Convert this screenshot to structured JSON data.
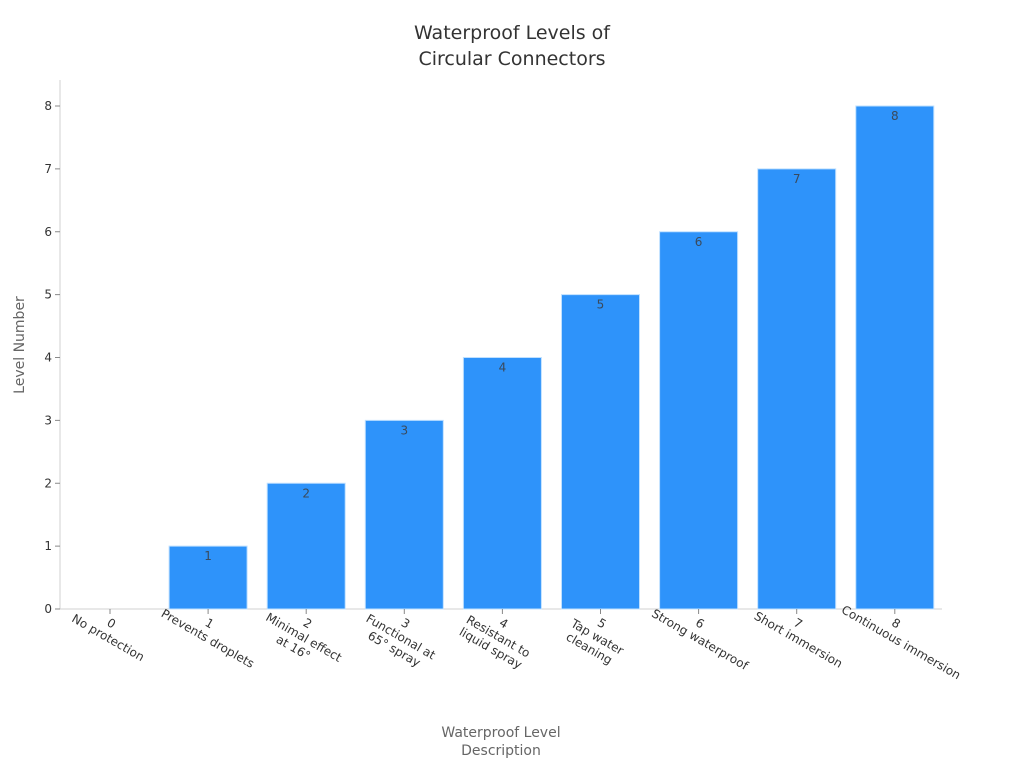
{
  "chart_data": {
    "type": "bar",
    "title": "Waterproof Levels of Circular Connectors",
    "title_lines": [
      "Waterproof Levels of",
      "Circular Connectors"
    ],
    "xlabel": "Waterproof Level Description",
    "xlabel_lines": [
      "Waterproof Level",
      "Description"
    ],
    "ylabel": "Level Number",
    "ylim": [
      0,
      8
    ],
    "yticks": [
      0,
      1,
      2,
      3,
      4,
      5,
      6,
      7,
      8
    ],
    "grid": false,
    "legend": null,
    "bar_color": "#2e93fa",
    "categories": [
      "0\nNo protection",
      "1\nPrevents droplets",
      "2\nMinimal effect at 16°",
      "3\nFunctional at 65° spray",
      "4\nResistant to liquid spray",
      "5\nTap water cleaning",
      "6\nStrong waterproof",
      "7\nShort immersion",
      "8\nContinuous immersion"
    ],
    "category_lines": [
      [
        "0",
        "No protection"
      ],
      [
        "1",
        "Prevents droplets"
      ],
      [
        "2",
        "Minimal effect",
        "at 16°"
      ],
      [
        "3",
        "Functional at",
        "65° spray"
      ],
      [
        "4",
        "Resistant to",
        "liquid spray"
      ],
      [
        "5",
        "Tap water",
        "cleaning"
      ],
      [
        "6",
        "Strong waterproof"
      ],
      [
        "7",
        "Short immersion"
      ],
      [
        "8",
        "Continuous immersion"
      ]
    ],
    "values": [
      0,
      1,
      2,
      3,
      4,
      5,
      6,
      7,
      8
    ],
    "data_labels": [
      "",
      "1",
      "2",
      "3",
      "4",
      "5",
      "6",
      "7",
      "8"
    ]
  }
}
